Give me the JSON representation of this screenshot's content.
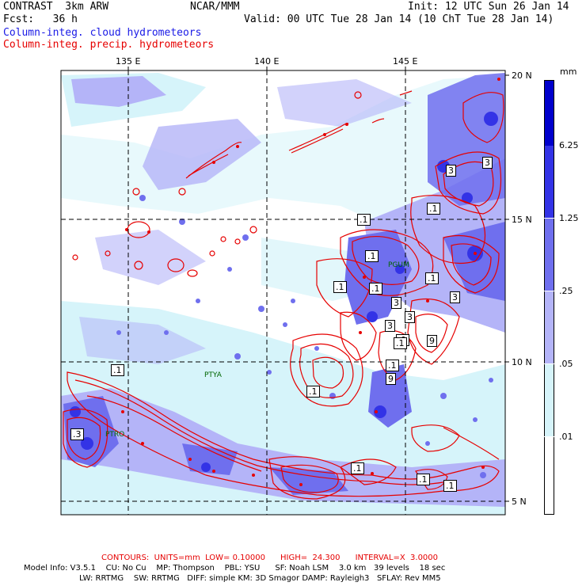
{
  "header": {
    "model": "CONTRAST  3km ARW",
    "org": "NCAR/MMM",
    "init": "Init: 12 UTC Sun 26 Jan 14",
    "fcst": "Fcst:   36 h",
    "valid": "Valid: 00 UTC Tue 28 Jan 14 (10 ChT Tue 28 Jan 14)",
    "field1": "Column-integ. cloud hydrometeors",
    "field2": "Column-integ. precip. hydrometeors"
  },
  "map": {
    "lon_labels": [
      "135 E",
      "140 E",
      "145 E"
    ],
    "lat_labels": [
      "20 N",
      "15 N",
      "10 N",
      "5 N"
    ],
    "station_labels": [
      "PGUM",
      "PTYA",
      "PTRO"
    ],
    "contour_labels": [
      ".1",
      ".1",
      ".1",
      ".1",
      "3",
      "3",
      ".1",
      "3",
      ".1",
      ".1",
      ".1",
      "9",
      "9",
      "3",
      ".1",
      ".1",
      ".1",
      ".1",
      ".1",
      ".3",
      "3",
      "3",
      ".1"
    ]
  },
  "colorbar": {
    "unit": "mm",
    "levels": [
      "6.25",
      "1.25",
      ".25",
      ".05",
      ".01"
    ],
    "colors": [
      "#0000cc",
      "#3333e6",
      "#6f6fee",
      "#b4b4f8",
      "#d6f4fa",
      "#ffffff"
    ]
  },
  "footer": {
    "contours": "CONTOURS:  UNITS=mm  LOW= 0.10000      HIGH=  24.300      INTERVAL=X  3.0000",
    "info1": "Model Info: V3.5.1    CU: No Cu    MP: Thompson    PBL: YSU      SF: Noah LSM    3.0 km   39 levels    18 sec",
    "info2": "LW: RRTMG    SW: RRTMG   DIFF: simple KM: 3D Smagor DAMP: Rayleigh3   SFLAY: Rev MM5"
  }
}
